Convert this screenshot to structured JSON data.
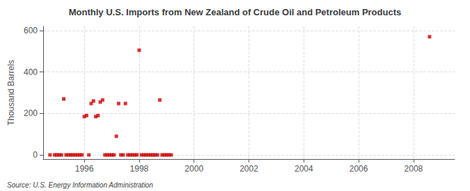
{
  "chart_data": {
    "type": "scatter",
    "title": "Monthly U.S. Imports from New Zealand of Crude Oil and Petroleum Products",
    "ylabel": "Thousand Barrels",
    "annotations": [
      "Source: U.S. Energy Information Administration"
    ],
    "color": "#cc0000",
    "marker": "square",
    "grid": true,
    "xlim": [
      1994.5,
      2009.5
    ],
    "xticks": [
      1996,
      1998,
      2000,
      2002,
      2004,
      2006,
      2008
    ],
    "ylim": [
      -20,
      620
    ],
    "yticks": [
      0,
      200,
      400,
      600
    ],
    "x": [
      1994.75,
      1994.917,
      1995.0,
      1995.083,
      1995.167,
      1995.25,
      1995.333,
      1995.417,
      1995.5,
      1995.583,
      1995.667,
      1995.75,
      1995.833,
      1995.917,
      1996.0,
      1996.083,
      1996.167,
      1996.25,
      1996.333,
      1996.417,
      1996.5,
      1996.583,
      1996.667,
      1996.75,
      1996.833,
      1996.917,
      1997.0,
      1997.083,
      1997.167,
      1997.25,
      1997.333,
      1997.417,
      1997.5,
      1997.583,
      1997.667,
      1997.75,
      1997.833,
      1997.917,
      1998.0,
      1998.083,
      1998.167,
      1998.25,
      1998.333,
      1998.417,
      1998.5,
      1998.583,
      1998.667,
      1998.75,
      1998.833,
      1998.917,
      1999.0,
      1999.083,
      1999.167,
      2008.583
    ],
    "values": [
      0,
      0,
      0,
      0,
      0,
      270,
      0,
      0,
      0,
      0,
      0,
      0,
      0,
      0,
      185,
      190,
      0,
      248,
      260,
      185,
      190,
      255,
      265,
      0,
      0,
      0,
      0,
      0,
      90,
      248,
      0,
      0,
      248,
      0,
      0,
      0,
      0,
      0,
      505,
      0,
      0,
      0,
      0,
      0,
      0,
      0,
      0,
      265,
      0,
      0,
      0,
      0,
      0,
      570
    ]
  }
}
